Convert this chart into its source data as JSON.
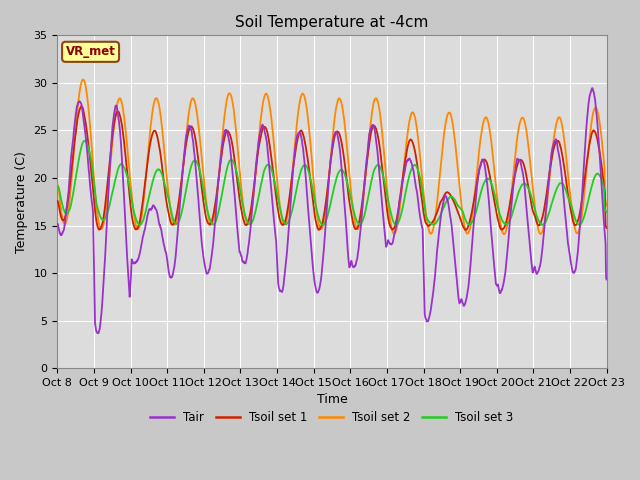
{
  "title": "Soil Temperature at -4cm",
  "xlabel": "Time",
  "ylabel": "Temperature (C)",
  "ylim": [
    0,
    35
  ],
  "annotation": "VR_met",
  "fig_bg": "#c8c8c8",
  "plot_bg": "#dcdcdc",
  "line_colors": {
    "Tair": "#9932cc",
    "Tsoil1": "#cc2200",
    "Tsoil2": "#ff8800",
    "Tsoil3": "#22cc22"
  },
  "legend_labels": [
    "Tair",
    "Tsoil set 1",
    "Tsoil set 2",
    "Tsoil set 3"
  ],
  "x_tick_labels": [
    "Oct 8",
    "Oct 9",
    "Oct 10",
    "Oct 11",
    "Oct 12",
    "Oct 13",
    "Oct 14",
    "Oct 15",
    "Oct 16",
    "Oct 17",
    "Oct 18",
    "Oct 19",
    "Oct 20",
    "Oct 21",
    "Oct 22",
    "Oct 23"
  ],
  "days": 15,
  "points_per_day": 144
}
